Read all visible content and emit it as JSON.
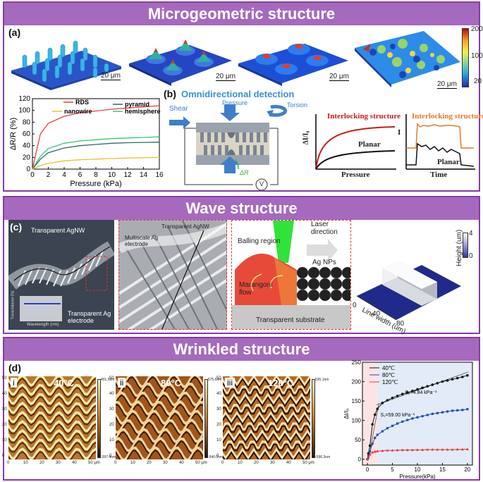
{
  "sections": {
    "microgeometric": {
      "title": "Microgeometric structure",
      "label_a": "(a)",
      "label_b": "(b)",
      "scale_bar": "20 μm",
      "colorbar_ticks": [
        "200",
        "100",
        "20"
      ],
      "detection_title": "Omnidirectional detection",
      "forces": {
        "shear": "Shear",
        "pressure": "Pressure",
        "torsion": "Torsion",
        "delta_r": "ΔR",
        "meter": "V"
      },
      "interlock_plot": {
        "curve1": "Interlocking structure",
        "curve2": "Planar",
        "xlabel": "Pressure",
        "ylabel": "ΔI/I₀"
      },
      "time_plot": {
        "curve1": "Interlocking structure",
        "curve2": "Planar",
        "xlabel": "Time",
        "ylabel": "I"
      }
    },
    "wave": {
      "title": "Wave structure",
      "label_c": "(c)",
      "agnw_label": "Transparent AgNW",
      "ag_electrode_label": "Transparent Ag electrode",
      "zoom_agnw_label": "Transparent AgNW",
      "multiscale_label": "Multiscale Ag electrode",
      "balling_region": "Balling region",
      "laser_direction": "Laser direction",
      "ag_nps": "Ag NPs",
      "marangoni": "Marangoni flow",
      "substrate": "Transparent substrate",
      "inset": {
        "ylabel": "Transmittance (%)",
        "xlabel": "Wavelength (nm)",
        "yticks": [
          "100",
          "90",
          "80",
          "70",
          "60"
        ],
        "xticks": [
          "400",
          "500",
          "600",
          "700",
          "800"
        ]
      },
      "surface_plot": {
        "zlabel": "Height (um)",
        "xlabel": "Line width (um)",
        "zticks": [
          "4",
          "0"
        ],
        "xticks": [
          "0",
          "40",
          "80"
        ]
      }
    },
    "wrinkled": {
      "title": "Wrinkled structure",
      "label_d": "(d)",
      "afm": [
        {
          "roman": "i",
          "temp": "40°C",
          "zmax": "401.5nm",
          "zmin": "-397.4nm"
        },
        {
          "roman": "ii",
          "temp": "80°C",
          "zmax": "575.6nm",
          "zmin": "-540.0nm"
        },
        {
          "roman": "iii",
          "temp": "120°C",
          "zmax": "535.1nm",
          "zmin": "-596.3nm"
        }
      ],
      "afm_xticks": [
        "0",
        "10",
        "20",
        "30",
        "40",
        "50 μm"
      ],
      "afm_yticks": [
        "50",
        "40",
        "30",
        "20",
        "10",
        "0"
      ],
      "s1_label": "S₁=59.00 kPa⁻¹",
      "s2_label": "S₂=4.84 kPa⁻¹"
    }
  },
  "chart_data": [
    {
      "type": "line",
      "title": "",
      "xlabel": "Pressure (kPa)",
      "ylabel": "ΔR/R (%)",
      "xlim": [
        0,
        16
      ],
      "ylim": [
        0,
        120
      ],
      "xticks": [
        "0",
        "2",
        "4",
        "6",
        "8",
        "10",
        "12",
        "14",
        "16"
      ],
      "yticks": [
        "0",
        "20",
        "40",
        "60",
        "80",
        "100",
        "120"
      ],
      "x": [
        0,
        1,
        2,
        4,
        6,
        8,
        10,
        12,
        14,
        16
      ],
      "series": [
        {
          "name": "RDS",
          "color": "#e8413c",
          "values": [
            0,
            60,
            78,
            90,
            96,
            99,
            102,
            104,
            106,
            108
          ]
        },
        {
          "name": "hemisphere",
          "color": "#3cc47a",
          "values": [
            0,
            22,
            35,
            44,
            48,
            50,
            52,
            53,
            54,
            55
          ]
        },
        {
          "name": "pyramid",
          "color": "#2e6b66",
          "values": [
            0,
            17,
            28,
            36,
            40,
            42,
            44,
            45,
            45.5,
            46
          ]
        },
        {
          "name": "nanowire",
          "color": "#e2c830",
          "values": [
            0,
            6,
            10,
            14,
            16,
            17,
            18,
            19,
            19.5,
            20
          ]
        }
      ]
    },
    {
      "type": "line",
      "title": "",
      "xlabel": "Pressure(kPa)",
      "ylabel": "ΔI/I₀",
      "xlim": [
        -1,
        21
      ],
      "ylim": [
        -15,
        250
      ],
      "xticks": [
        "0",
        "5",
        "10",
        "15",
        "20"
      ],
      "yticks": [
        "0",
        "50",
        "100",
        "150",
        "200",
        "250"
      ],
      "series": [
        {
          "name": "40℃",
          "color": "#111111",
          "x": [
            0,
            0.2,
            0.5,
            1,
            1.5,
            2,
            3,
            4,
            5,
            6,
            7,
            8,
            9,
            10,
            11,
            12,
            13,
            14,
            15,
            16,
            17,
            18,
            19,
            20
          ],
          "values": [
            0,
            15,
            35,
            90,
            115,
            130,
            145,
            152,
            158,
            163,
            168,
            172,
            176,
            180,
            184,
            188,
            192,
            196,
            200,
            203,
            206,
            209,
            212,
            216
          ]
        },
        {
          "name": "80℃",
          "color": "#1f4fa8",
          "x": [
            0,
            0.2,
            0.5,
            1,
            1.5,
            2,
            3,
            4,
            5,
            6,
            7,
            8,
            9,
            10,
            11,
            12,
            13,
            14,
            15,
            16,
            17,
            18,
            19,
            20
          ],
          "values": [
            0,
            8,
            20,
            40,
            55,
            63,
            72,
            80,
            86,
            92,
            97,
            101,
            105,
            108,
            111,
            114,
            117,
            119,
            121,
            123,
            125,
            126,
            127,
            129
          ]
        },
        {
          "name": "120℃",
          "color": "#e23b3b",
          "x": [
            0,
            0.2,
            0.5,
            1,
            1.5,
            2,
            3,
            4,
            5,
            6,
            7,
            8,
            9,
            10,
            11,
            12,
            13,
            14,
            15,
            16,
            17,
            18,
            19,
            20
          ],
          "values": [
            0,
            5,
            12,
            18,
            20,
            21,
            22,
            23,
            23,
            23.5,
            24,
            24,
            24,
            24.5,
            24.5,
            25,
            25,
            25,
            25,
            25,
            25,
            25.5,
            25.5,
            26
          ]
        }
      ]
    }
  ]
}
